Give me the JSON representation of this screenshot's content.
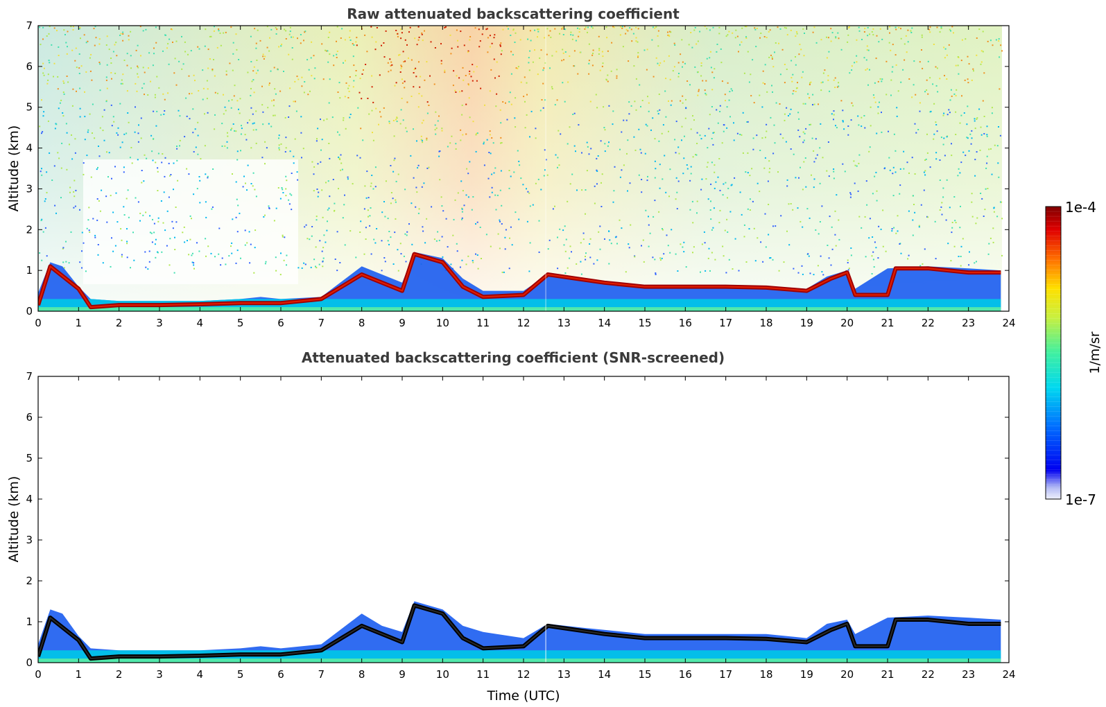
{
  "chart_data": [
    {
      "type": "heatmap",
      "title": "Raw attenuated backscattering coefficient",
      "xlabel": "",
      "ylabel": "Altitude (km)",
      "xlim": [
        0,
        24
      ],
      "ylim": [
        0,
        7
      ],
      "xticks": [
        "0",
        "1",
        "2",
        "3",
        "4",
        "5",
        "6",
        "7",
        "8",
        "9",
        "10",
        "11",
        "12",
        "13",
        "14",
        "15",
        "16",
        "17",
        "18",
        "19",
        "20",
        "21",
        "22",
        "23",
        "24"
      ],
      "yticks": [
        "0",
        "1",
        "2",
        "3",
        "4",
        "5",
        "6",
        "7"
      ],
      "screened": false,
      "layer_top_km": [
        [
          0.0,
          0.45
        ],
        [
          0.3,
          1.2
        ],
        [
          0.6,
          1.1
        ],
        [
          1.0,
          0.6
        ],
        [
          1.3,
          0.3
        ],
        [
          2.0,
          0.25
        ],
        [
          3.0,
          0.25
        ],
        [
          4.0,
          0.25
        ],
        [
          5.0,
          0.3
        ],
        [
          5.5,
          0.35
        ],
        [
          6.0,
          0.3
        ],
        [
          7.0,
          0.35
        ],
        [
          8.0,
          1.1
        ],
        [
          8.5,
          0.9
        ],
        [
          9.0,
          0.7
        ],
        [
          9.3,
          1.45
        ],
        [
          10.0,
          1.3
        ],
        [
          10.5,
          0.8
        ],
        [
          11.0,
          0.5
        ],
        [
          12.0,
          0.5
        ],
        [
          12.6,
          0.9
        ],
        [
          13.5,
          0.8
        ],
        [
          14.0,
          0.7
        ],
        [
          15.0,
          0.62
        ],
        [
          16.0,
          0.62
        ],
        [
          17.0,
          0.62
        ],
        [
          18.0,
          0.62
        ],
        [
          19.0,
          0.55
        ],
        [
          19.5,
          0.85
        ],
        [
          20.0,
          1.0
        ],
        [
          20.2,
          0.55
        ],
        [
          21.0,
          1.05
        ],
        [
          22.0,
          1.1
        ],
        [
          23.0,
          1.05
        ],
        [
          23.8,
          1.0
        ]
      ],
      "aerosol_layer_km": [
        [
          0.0,
          0.15
        ],
        [
          0.3,
          1.1
        ],
        [
          1.0,
          0.55
        ],
        [
          1.3,
          0.1
        ],
        [
          2.0,
          0.15
        ],
        [
          3.0,
          0.15
        ],
        [
          4.0,
          0.17
        ],
        [
          5.0,
          0.2
        ],
        [
          6.0,
          0.2
        ],
        [
          7.0,
          0.3
        ],
        [
          8.0,
          0.9
        ],
        [
          9.0,
          0.5
        ],
        [
          9.3,
          1.4
        ],
        [
          10.0,
          1.2
        ],
        [
          10.5,
          0.6
        ],
        [
          11.0,
          0.35
        ],
        [
          12.0,
          0.4
        ],
        [
          12.6,
          0.9
        ],
        [
          14.0,
          0.7
        ],
        [
          15.0,
          0.6
        ],
        [
          17.0,
          0.6
        ],
        [
          18.0,
          0.58
        ],
        [
          19.0,
          0.5
        ],
        [
          19.6,
          0.8
        ],
        [
          20.0,
          0.95
        ],
        [
          20.2,
          0.4
        ],
        [
          21.0,
          0.4
        ],
        [
          21.2,
          1.05
        ],
        [
          22.0,
          1.05
        ],
        [
          23.0,
          0.95
        ],
        [
          23.8,
          0.95
        ]
      ]
    },
    {
      "type": "heatmap",
      "title": "Attenuated backscattering coefficient (SNR-screened)",
      "xlabel": "Time (UTC)",
      "ylabel": "Altitude (km)",
      "xlim": [
        0,
        24
      ],
      "ylim": [
        0,
        7
      ],
      "xticks": [
        "0",
        "1",
        "2",
        "3",
        "4",
        "5",
        "6",
        "7",
        "8",
        "9",
        "10",
        "11",
        "12",
        "13",
        "14",
        "15",
        "16",
        "17",
        "18",
        "19",
        "20",
        "21",
        "22",
        "23",
        "24"
      ],
      "yticks": [
        "0",
        "1",
        "2",
        "3",
        "4",
        "5",
        "6",
        "7"
      ],
      "screened": true,
      "layer_top_km": [
        [
          0.0,
          0.45
        ],
        [
          0.3,
          1.3
        ],
        [
          0.6,
          1.2
        ],
        [
          1.0,
          0.65
        ],
        [
          1.3,
          0.35
        ],
        [
          2.0,
          0.3
        ],
        [
          3.0,
          0.3
        ],
        [
          4.0,
          0.3
        ],
        [
          5.0,
          0.35
        ],
        [
          5.5,
          0.4
        ],
        [
          6.0,
          0.35
        ],
        [
          7.0,
          0.45
        ],
        [
          8.0,
          1.2
        ],
        [
          8.5,
          0.9
        ],
        [
          9.0,
          0.75
        ],
        [
          9.3,
          1.5
        ],
        [
          10.0,
          1.3
        ],
        [
          10.5,
          0.9
        ],
        [
          11.0,
          0.75
        ],
        [
          12.0,
          0.6
        ],
        [
          12.6,
          0.95
        ],
        [
          13.5,
          0.85
        ],
        [
          14.0,
          0.8
        ],
        [
          15.0,
          0.7
        ],
        [
          16.0,
          0.7
        ],
        [
          17.0,
          0.7
        ],
        [
          18.0,
          0.7
        ],
        [
          19.0,
          0.6
        ],
        [
          19.5,
          0.95
        ],
        [
          20.0,
          1.05
        ],
        [
          20.2,
          0.7
        ],
        [
          21.0,
          1.1
        ],
        [
          22.0,
          1.15
        ],
        [
          23.0,
          1.1
        ],
        [
          23.8,
          1.05
        ]
      ],
      "aerosol_layer_km": [
        [
          0.0,
          0.15
        ],
        [
          0.3,
          1.1
        ],
        [
          1.0,
          0.55
        ],
        [
          1.3,
          0.1
        ],
        [
          2.0,
          0.15
        ],
        [
          3.0,
          0.15
        ],
        [
          4.0,
          0.17
        ],
        [
          5.0,
          0.2
        ],
        [
          6.0,
          0.2
        ],
        [
          7.0,
          0.3
        ],
        [
          8.0,
          0.9
        ],
        [
          9.0,
          0.5
        ],
        [
          9.3,
          1.4
        ],
        [
          10.0,
          1.2
        ],
        [
          10.5,
          0.6
        ],
        [
          11.0,
          0.35
        ],
        [
          12.0,
          0.4
        ],
        [
          12.6,
          0.9
        ],
        [
          14.0,
          0.7
        ],
        [
          15.0,
          0.6
        ],
        [
          17.0,
          0.6
        ],
        [
          18.0,
          0.58
        ],
        [
          19.0,
          0.5
        ],
        [
          19.6,
          0.8
        ],
        [
          20.0,
          0.95
        ],
        [
          20.2,
          0.4
        ],
        [
          21.0,
          0.4
        ],
        [
          21.2,
          1.05
        ],
        [
          22.0,
          1.05
        ],
        [
          23.0,
          0.95
        ],
        [
          23.8,
          0.95
        ]
      ]
    }
  ],
  "colorbar": {
    "max_label": "1e-4",
    "min_label": "1e-7",
    "unit_label": "1/m/sr",
    "colormap": "jet",
    "min_color": "#eef0fb",
    "max_color": "#800000"
  }
}
